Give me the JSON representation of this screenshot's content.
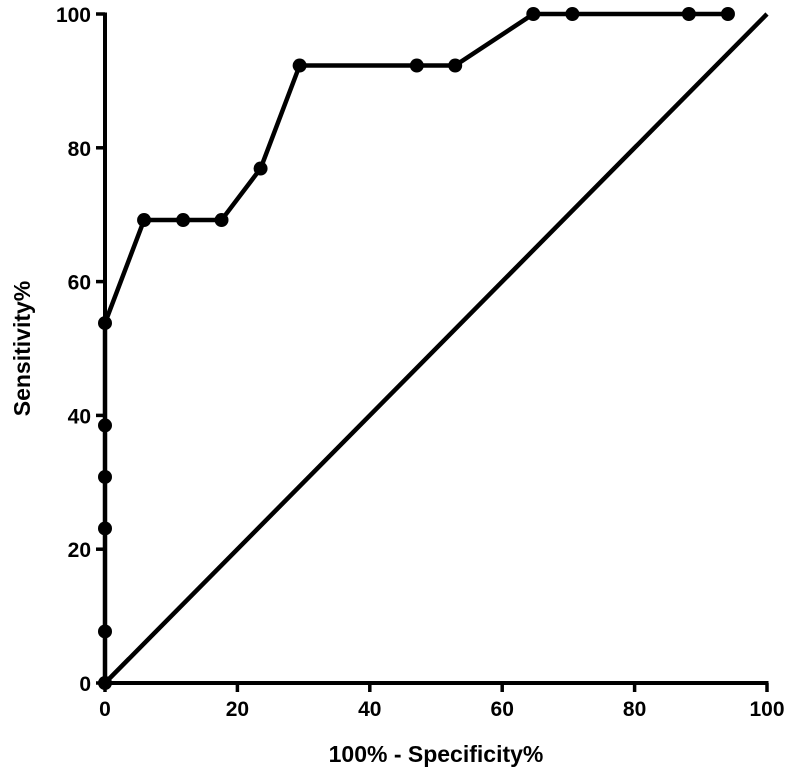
{
  "chart_data": {
    "type": "line",
    "title": "",
    "xlabel": "100% - Specificity%",
    "ylabel": "Sensitivity%",
    "xlim": [
      0,
      100
    ],
    "ylim": [
      0,
      100
    ],
    "x_ticks": [
      0,
      20,
      40,
      60,
      80,
      100
    ],
    "y_ticks": [
      0,
      20,
      40,
      60,
      80,
      100
    ],
    "grid": false,
    "legend": "none",
    "colors": {
      "line": "#000000",
      "marker": "#000000",
      "axis": "#000000"
    },
    "series": [
      {
        "kind": "roc-curve",
        "markers": true,
        "x": [
          0,
          0,
          0,
          0,
          0,
          0,
          5.9,
          11.8,
          17.6,
          23.5,
          29.4,
          47.1,
          52.9,
          64.7,
          70.6,
          88.2,
          94.1
        ],
        "y": [
          0,
          7.7,
          23.1,
          30.8,
          38.5,
          53.8,
          69.2,
          69.2,
          69.2,
          76.9,
          92.3,
          92.3,
          92.3,
          100,
          100,
          100,
          100
        ]
      },
      {
        "kind": "reference-line",
        "markers": false,
        "x": [
          0,
          100
        ],
        "y": [
          0,
          100
        ]
      }
    ]
  }
}
